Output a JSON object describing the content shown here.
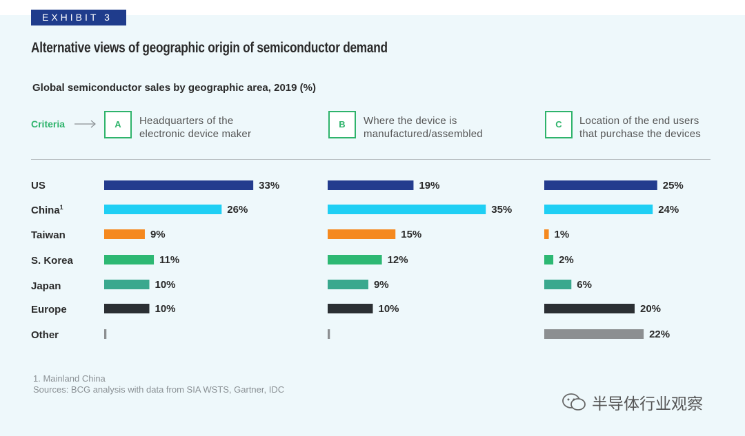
{
  "exhibit": "EXHIBIT 3",
  "title": "Alternative views of geographic origin of semiconductor demand",
  "subtitle": "Global semiconductor sales by geographic area, 2019 (%)",
  "criteria": {
    "label": "Criteria",
    "items": [
      {
        "letter": "A",
        "line1": "Headquarters of the",
        "line2": "electronic device maker"
      },
      {
        "letter": "B",
        "line1": "Where the device is",
        "line2": "manufactured/assembled"
      },
      {
        "letter": "C",
        "line1": "Location of the end users",
        "line2": "that purchase the devices"
      }
    ]
  },
  "rows": [
    {
      "label": "US",
      "color": "#233c8e"
    },
    {
      "label": "China",
      "sup": "1",
      "color": "#1fcff4"
    },
    {
      "label": "Taiwan",
      "color": "#f5891f"
    },
    {
      "label": "S. Korea",
      "color": "#2db873"
    },
    {
      "label": "Japan",
      "color": "#3aa88e"
    },
    {
      "label": "Europe",
      "color": "#2b2f33"
    },
    {
      "label": "Other",
      "color": "#8c8f91"
    }
  ],
  "chart_data": {
    "type": "bar",
    "orientation": "horizontal",
    "categories": [
      "US",
      "China",
      "Taiwan",
      "S. Korea",
      "Japan",
      "Europe",
      "Other"
    ],
    "series": [
      {
        "name": "A",
        "values": [
          33,
          26,
          9,
          11,
          10,
          10,
          0.5
        ],
        "labels": [
          "33%",
          "26%",
          "9%",
          "11%",
          "10%",
          "10%",
          ""
        ]
      },
      {
        "name": "B",
        "values": [
          19,
          35,
          15,
          12,
          9,
          10,
          0.5
        ],
        "labels": [
          "19%",
          "35%",
          "15%",
          "12%",
          "9%",
          "10%",
          ""
        ]
      },
      {
        "name": "C",
        "values": [
          25,
          24,
          1,
          2,
          6,
          20,
          22
        ],
        "labels": [
          "25%",
          "24%",
          "1%",
          "2%",
          "6%",
          "20%",
          "22%"
        ]
      }
    ],
    "title": "Global semiconductor sales by geographic area, 2019 (%)",
    "grid": false
  },
  "footnote": {
    "note": "1. Mainland China",
    "sources": "Sources: BCG analysis with data from SIA WSTS, Gartner, IDC"
  },
  "watermark": "半导体行业观察"
}
